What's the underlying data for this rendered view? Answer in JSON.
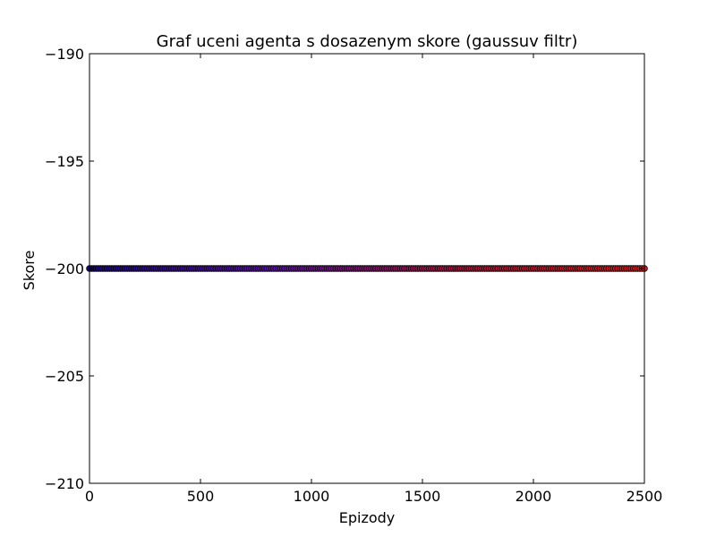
{
  "chart_data": {
    "type": "scatter",
    "title": "Graf uceni agenta s dosazenym skore (gaussuv filtr)",
    "xlabel": "Epizody",
    "ylabel": "Skore",
    "xlim": [
      0,
      2500
    ],
    "ylim": [
      -210,
      -190
    ],
    "xticks": [
      0,
      500,
      1000,
      1500,
      2000,
      2500
    ],
    "xtick_labels": [
      "0",
      "500",
      "1000",
      "1500",
      "2000",
      "2500"
    ],
    "yticks": [
      -210,
      -205,
      -200,
      -195,
      -190
    ],
    "ytick_labels": [
      "−210",
      "−205",
      "−200",
      "−195",
      "−190"
    ],
    "grid": false,
    "legend": "none",
    "series": [
      {
        "x_start": 0,
        "x_end": 2500,
        "x_step": 10,
        "y_constant": -200,
        "color_gradient": [
          "#1a0a7a",
          "#5a12a0",
          "#a8143c",
          "#d01c1c"
        ],
        "marker_edge_color": "#000000"
      }
    ]
  }
}
